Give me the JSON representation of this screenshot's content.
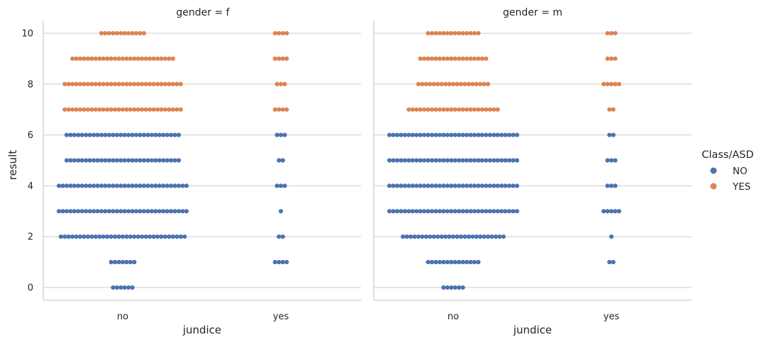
{
  "chart_data": {
    "type": "scatter",
    "subtype": "swarm",
    "ylabel": "result",
    "xlabel": "jundice",
    "categories": [
      "no",
      "yes"
    ],
    "yticks": [
      0,
      2,
      4,
      6,
      8,
      10
    ],
    "ylim": [
      -0.5,
      10.5
    ],
    "grid": "horizontal",
    "legend": {
      "title": "Class/ASD",
      "placement": "right",
      "entries": [
        {
          "name": "NO",
          "color": "#4c72b0"
        },
        {
          "name": "YES",
          "color": "#dd8452"
        }
      ]
    },
    "facets": [
      {
        "title": "gender = f",
        "counts": [
          {
            "category": "no",
            "result": 0,
            "class": "NO",
            "count": 6
          },
          {
            "category": "no",
            "result": 1,
            "class": "NO",
            "count": 7
          },
          {
            "category": "no",
            "result": 2,
            "class": "NO",
            "count": 33
          },
          {
            "category": "no",
            "result": 3,
            "class": "NO",
            "count": 34
          },
          {
            "category": "no",
            "result": 4,
            "class": "NO",
            "count": 34
          },
          {
            "category": "no",
            "result": 5,
            "class": "NO",
            "count": 30
          },
          {
            "category": "no",
            "result": 6,
            "class": "NO",
            "count": 30
          },
          {
            "category": "no",
            "result": 7,
            "class": "YES",
            "count": 31
          },
          {
            "category": "no",
            "result": 8,
            "class": "YES",
            "count": 31
          },
          {
            "category": "no",
            "result": 9,
            "class": "YES",
            "count": 27
          },
          {
            "category": "no",
            "result": 10,
            "class": "YES",
            "count": 12
          },
          {
            "category": "yes",
            "result": 1,
            "class": "NO",
            "count": 4
          },
          {
            "category": "yes",
            "result": 2,
            "class": "NO",
            "count": 2
          },
          {
            "category": "yes",
            "result": 3,
            "class": "NO",
            "count": 1
          },
          {
            "category": "yes",
            "result": 4,
            "class": "NO",
            "count": 3
          },
          {
            "category": "yes",
            "result": 5,
            "class": "NO",
            "count": 2
          },
          {
            "category": "yes",
            "result": 6,
            "class": "NO",
            "count": 3
          },
          {
            "category": "yes",
            "result": 7,
            "class": "YES",
            "count": 4
          },
          {
            "category": "yes",
            "result": 8,
            "class": "YES",
            "count": 3
          },
          {
            "category": "yes",
            "result": 9,
            "class": "YES",
            "count": 4
          },
          {
            "category": "yes",
            "result": 10,
            "class": "YES",
            "count": 4
          }
        ]
      },
      {
        "title": "gender = m",
        "counts": [
          {
            "category": "no",
            "result": 0,
            "class": "NO",
            "count": 6
          },
          {
            "category": "no",
            "result": 1,
            "class": "NO",
            "count": 14
          },
          {
            "category": "no",
            "result": 2,
            "class": "NO",
            "count": 27
          },
          {
            "category": "no",
            "result": 3,
            "class": "NO",
            "count": 34
          },
          {
            "category": "no",
            "result": 4,
            "class": "NO",
            "count": 34
          },
          {
            "category": "no",
            "result": 5,
            "class": "NO",
            "count": 34
          },
          {
            "category": "no",
            "result": 6,
            "class": "NO",
            "count": 34
          },
          {
            "category": "no",
            "result": 7,
            "class": "YES",
            "count": 24
          },
          {
            "category": "no",
            "result": 8,
            "class": "YES",
            "count": 19
          },
          {
            "category": "no",
            "result": 9,
            "class": "YES",
            "count": 18
          },
          {
            "category": "no",
            "result": 10,
            "class": "YES",
            "count": 14
          },
          {
            "category": "yes",
            "result": 1,
            "class": "NO",
            "count": 2
          },
          {
            "category": "yes",
            "result": 2,
            "class": "NO",
            "count": 1
          },
          {
            "category": "yes",
            "result": 3,
            "class": "NO",
            "count": 5
          },
          {
            "category": "yes",
            "result": 4,
            "class": "NO",
            "count": 3
          },
          {
            "category": "yes",
            "result": 5,
            "class": "NO",
            "count": 3
          },
          {
            "category": "yes",
            "result": 6,
            "class": "NO",
            "count": 2
          },
          {
            "category": "yes",
            "result": 7,
            "class": "YES",
            "count": 2
          },
          {
            "category": "yes",
            "result": 8,
            "class": "YES",
            "count": 5
          },
          {
            "category": "yes",
            "result": 9,
            "class": "YES",
            "count": 3
          },
          {
            "category": "yes",
            "result": 10,
            "class": "YES",
            "count": 3
          }
        ]
      }
    ]
  }
}
